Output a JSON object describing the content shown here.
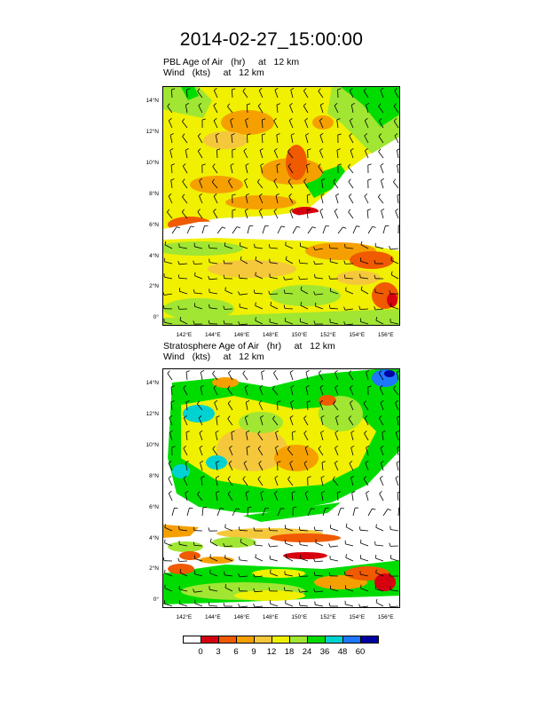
{
  "title": "2014-02-27_15:00:00",
  "panels": [
    {
      "id": "pbl",
      "line1": "PBL Age of Air   (hr)     at   12 km",
      "line2": "Wind   (kts)     at   12 km",
      "field_variable": "PBL Age of Air",
      "field_units": "hr",
      "wind_units": "kts",
      "level": "12 km"
    },
    {
      "id": "stratosphere",
      "line1": "Stratosphere Age of Air   (hr)     at   12 km",
      "line2": "Wind   (kts)     at   12 km",
      "field_variable": "Stratosphere Age of Air",
      "field_units": "hr",
      "wind_units": "kts",
      "level": "12 km"
    }
  ],
  "axes": {
    "lat_ticks": [
      "0°",
      "2°N",
      "4°N",
      "6°N",
      "8°N",
      "10°N",
      "12°N",
      "14°N"
    ],
    "lon_ticks": [
      "142°E",
      "144°E",
      "146°E",
      "148°E",
      "150°E",
      "152°E",
      "154°E",
      "156°E"
    ],
    "lat_values": [
      0,
      2,
      4,
      6,
      8,
      10,
      12,
      14
    ],
    "lon_values": [
      142,
      144,
      146,
      148,
      150,
      152,
      154,
      156
    ],
    "lat_range": [
      -0.5,
      15
    ],
    "lon_range": [
      140.5,
      157
    ]
  },
  "colorbar": {
    "labels": [
      "0",
      "3",
      "6",
      "9",
      "12",
      "18",
      "24",
      "36",
      "48",
      "60"
    ],
    "colors": [
      "#ffffff",
      "#d7000f",
      "#f05a00",
      "#f5a000",
      "#f5c83c",
      "#f0f000",
      "#a0e632",
      "#00dc00",
      "#00d2d2",
      "#1e78ff",
      "#0000a0"
    ]
  }
}
